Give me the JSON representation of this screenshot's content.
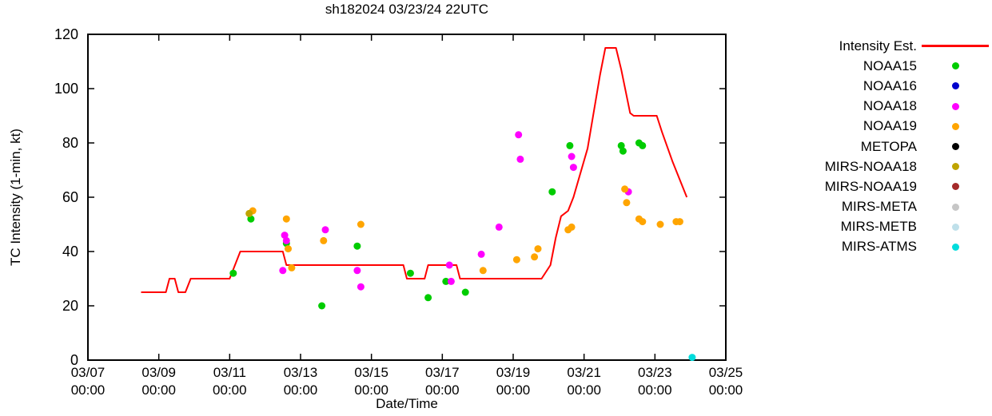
{
  "chart_data": {
    "type": "scatter",
    "title": "sh182024 03/23/24 22UTC",
    "xlabel": "Date/Time",
    "ylabel": "TC Intensity (1-min, kt)",
    "x_axis": {
      "min_day": 0,
      "max_day": 18,
      "ticks": [
        {
          "day": 0,
          "date": "03/07",
          "time": "00:00"
        },
        {
          "day": 2,
          "date": "03/09",
          "time": "00:00"
        },
        {
          "day": 4,
          "date": "03/11",
          "time": "00:00"
        },
        {
          "day": 6,
          "date": "03/13",
          "time": "00:00"
        },
        {
          "day": 8,
          "date": "03/15",
          "time": "00:00"
        },
        {
          "day": 10,
          "date": "03/17",
          "time": "00:00"
        },
        {
          "day": 12,
          "date": "03/19",
          "time": "00:00"
        },
        {
          "day": 14,
          "date": "03/21",
          "time": "00:00"
        },
        {
          "day": 16,
          "date": "03/23",
          "time": "00:00"
        },
        {
          "day": 18,
          "date": "03/25",
          "time": "00:00"
        }
      ]
    },
    "y_axis": {
      "min": 0,
      "max": 120,
      "ticks": [
        0,
        20,
        40,
        60,
        80,
        100,
        120
      ]
    },
    "line_series": {
      "name": "Intensity Est.",
      "color": "#ff0000",
      "points": [
        [
          1.5,
          25
        ],
        [
          2.2,
          25
        ],
        [
          2.3,
          30
        ],
        [
          2.45,
          30
        ],
        [
          2.55,
          25
        ],
        [
          2.75,
          25
        ],
        [
          2.9,
          30
        ],
        [
          4.0,
          30
        ],
        [
          4.3,
          40
        ],
        [
          5.5,
          40
        ],
        [
          5.6,
          35
        ],
        [
          8.9,
          35
        ],
        [
          9.0,
          30
        ],
        [
          9.5,
          30
        ],
        [
          9.6,
          35
        ],
        [
          10.4,
          35
        ],
        [
          10.5,
          30
        ],
        [
          12.8,
          30
        ],
        [
          13.05,
          35
        ],
        [
          13.2,
          45
        ],
        [
          13.35,
          53
        ],
        [
          13.55,
          55
        ],
        [
          13.7,
          60
        ],
        [
          14.1,
          78
        ],
        [
          14.45,
          105
        ],
        [
          14.6,
          115
        ],
        [
          14.9,
          115
        ],
        [
          15.05,
          107
        ],
        [
          15.3,
          91
        ],
        [
          15.4,
          90
        ],
        [
          16.05,
          90
        ],
        [
          16.2,
          84
        ],
        [
          16.5,
          73
        ],
        [
          16.9,
          60
        ]
      ]
    },
    "scatter_series": [
      {
        "name": "NOAA15",
        "color": "#00cc00",
        "points": [
          [
            4.1,
            32
          ],
          [
            4.6,
            52
          ],
          [
            5.6,
            43
          ],
          [
            6.6,
            20
          ],
          [
            7.6,
            42
          ],
          [
            9.1,
            32
          ],
          [
            9.6,
            23
          ],
          [
            10.1,
            29
          ],
          [
            10.65,
            25
          ],
          [
            13.1,
            62
          ],
          [
            13.6,
            79
          ],
          [
            15.05,
            79
          ],
          [
            15.1,
            77
          ],
          [
            15.55,
            80
          ],
          [
            15.65,
            79
          ]
        ]
      },
      {
        "name": "NOAA16",
        "color": "#0000cd",
        "points": []
      },
      {
        "name": "NOAA18",
        "color": "#ff00ff",
        "points": [
          [
            5.5,
            33
          ],
          [
            5.55,
            46
          ],
          [
            5.6,
            44
          ],
          [
            6.7,
            48
          ],
          [
            7.6,
            33
          ],
          [
            7.7,
            27
          ],
          [
            10.2,
            35
          ],
          [
            10.25,
            29
          ],
          [
            11.1,
            39
          ],
          [
            11.6,
            49
          ],
          [
            12.15,
            83
          ],
          [
            12.2,
            74
          ],
          [
            13.65,
            75
          ],
          [
            13.7,
            71
          ],
          [
            15.25,
            62
          ]
        ]
      },
      {
        "name": "NOAA19",
        "color": "#ffa500",
        "points": [
          [
            4.65,
            55
          ],
          [
            5.6,
            52
          ],
          [
            5.65,
            41
          ],
          [
            5.75,
            34
          ],
          [
            6.65,
            44
          ],
          [
            7.7,
            50
          ],
          [
            11.15,
            33
          ],
          [
            12.1,
            37
          ],
          [
            12.6,
            38
          ],
          [
            12.7,
            41
          ],
          [
            13.55,
            48
          ],
          [
            13.65,
            49
          ],
          [
            15.15,
            63
          ],
          [
            15.2,
            58
          ],
          [
            15.55,
            52
          ],
          [
            15.65,
            51
          ],
          [
            16.15,
            50
          ],
          [
            16.6,
            51
          ],
          [
            16.7,
            51
          ]
        ]
      },
      {
        "name": "METOPA",
        "color": "#000000",
        "points": []
      },
      {
        "name": "MIRS-NOAA18",
        "color": "#bfa400",
        "points": [
          [
            4.55,
            54
          ]
        ]
      },
      {
        "name": "MIRS-NOAA19",
        "color": "#a52a2a",
        "points": []
      },
      {
        "name": "MIRS-META",
        "color": "#c6c6c6",
        "points": []
      },
      {
        "name": "MIRS-METB",
        "color": "#bfe0ea",
        "points": []
      },
      {
        "name": "MIRS-ATMS",
        "color": "#00dcdc",
        "points": [
          [
            17.05,
            1
          ]
        ]
      }
    ]
  }
}
